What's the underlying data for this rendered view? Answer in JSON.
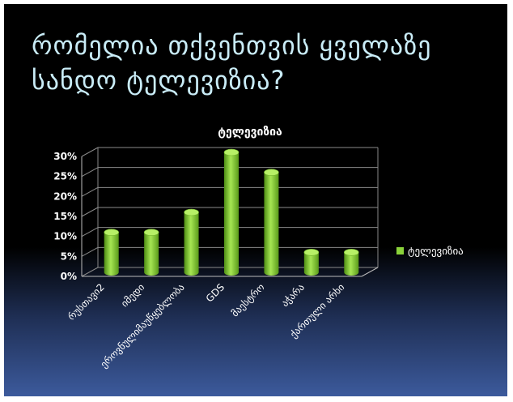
{
  "slide": {
    "title": "რომელია თქვენთვის ყველაზე სანდო ტელევიზია?"
  },
  "chart_data": {
    "type": "bar",
    "title": "ტელევიზია",
    "categories": [
      "რუსთავი2",
      "იმედი",
      "ეროვნულიმაუწყებლობა",
      "GDS",
      "მაესტრო",
      "აჭარა",
      "ქართული არხი"
    ],
    "series": [
      {
        "name": "ტელევიზია",
        "values": [
          10,
          10,
          15,
          30,
          25,
          5,
          5
        ]
      }
    ],
    "ylim": [
      0,
      30
    ],
    "yticks": [
      "0%",
      "5%",
      "10%",
      "15%",
      "20%",
      "25%",
      "30%"
    ],
    "grid": true,
    "legend": "right",
    "bar_color": "#8ad23a"
  }
}
